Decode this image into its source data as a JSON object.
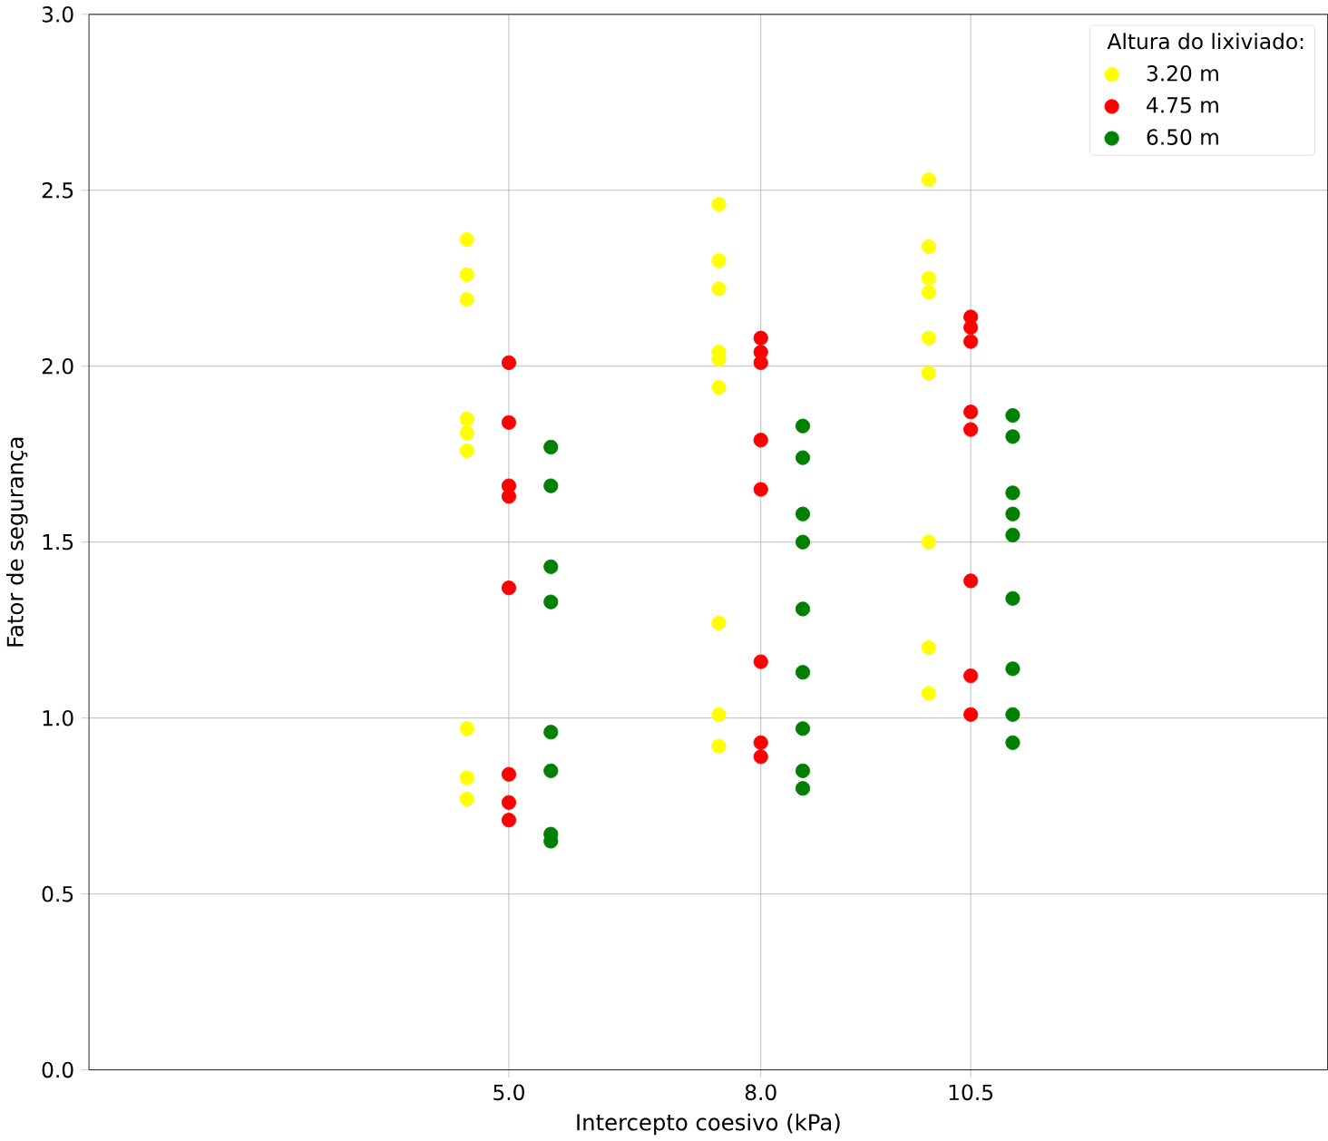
{
  "chart_data": {
    "type": "scatter",
    "xlabel": "Intercepto coesivo (kPa)",
    "ylabel": "Fator de segurança",
    "legend_title": "Altura do lixiviado:",
    "xlim": [
      0,
      14.75
    ],
    "ylim": [
      0,
      3
    ],
    "xticks": [
      {
        "value": 5,
        "label": "5.0"
      },
      {
        "value": 8,
        "label": "8.0"
      },
      {
        "value": 10.5,
        "label": "10.5"
      }
    ],
    "yticks": [
      {
        "value": 0,
        "label": "0.0"
      },
      {
        "value": 0.5,
        "label": "0.5"
      },
      {
        "value": 1,
        "label": "1.0"
      },
      {
        "value": 1.5,
        "label": "1.5"
      },
      {
        "value": 2,
        "label": "2.0"
      },
      {
        "value": 2.5,
        "label": "2.5"
      },
      {
        "value": 3,
        "label": "3.0"
      }
    ],
    "grid": true,
    "legend": "top right",
    "marker": "circle",
    "series": [
      {
        "name": "3.20 m",
        "color": "#ffff00",
        "x": [
          4.5,
          4.5,
          4.5,
          4.5,
          4.5,
          4.5,
          4.5,
          4.5,
          4.5,
          7.5,
          7.5,
          7.5,
          7.5,
          7.5,
          7.5,
          7.5,
          7.5,
          7.5,
          10,
          10,
          10,
          10,
          10,
          10,
          10,
          10,
          10
        ],
        "values": [
          2.36,
          2.26,
          2.19,
          1.85,
          1.81,
          1.76,
          0.97,
          0.83,
          0.77,
          2.46,
          2.3,
          2.22,
          2.04,
          2.02,
          1.94,
          1.27,
          1.01,
          0.92,
          2.53,
          2.34,
          2.25,
          2.21,
          2.08,
          1.98,
          1.5,
          1.2,
          1.07
        ]
      },
      {
        "name": "4.75 m",
        "color": "#ff0000",
        "x": [
          5,
          5,
          5,
          5,
          5,
          5,
          5,
          5,
          8,
          8,
          8,
          8,
          8,
          8,
          8,
          8,
          10.5,
          10.5,
          10.5,
          10.5,
          10.5,
          10.5,
          10.5,
          10.5
        ],
        "values": [
          2.01,
          1.84,
          1.66,
          1.63,
          1.37,
          0.84,
          0.76,
          0.71,
          2.08,
          2.04,
          2.01,
          1.79,
          1.65,
          1.16,
          0.93,
          0.89,
          2.14,
          2.11,
          2.07,
          1.87,
          1.82,
          1.39,
          1.12,
          1.01
        ]
      },
      {
        "name": "6.50 m",
        "color": "#008000",
        "x": [
          5.5,
          5.5,
          5.5,
          5.5,
          5.5,
          5.5,
          5.5,
          5.5,
          8.5,
          8.5,
          8.5,
          8.5,
          8.5,
          8.5,
          8.5,
          8.5,
          8.5,
          11,
          11,
          11,
          11,
          11,
          11,
          11,
          11,
          11
        ],
        "values": [
          1.77,
          1.66,
          1.43,
          1.33,
          0.96,
          0.85,
          0.67,
          0.65,
          1.83,
          1.74,
          1.58,
          1.5,
          1.31,
          1.13,
          0.97,
          0.85,
          0.8,
          1.86,
          1.8,
          1.64,
          1.58,
          1.52,
          1.34,
          1.14,
          1.01,
          0.93
        ]
      }
    ]
  }
}
